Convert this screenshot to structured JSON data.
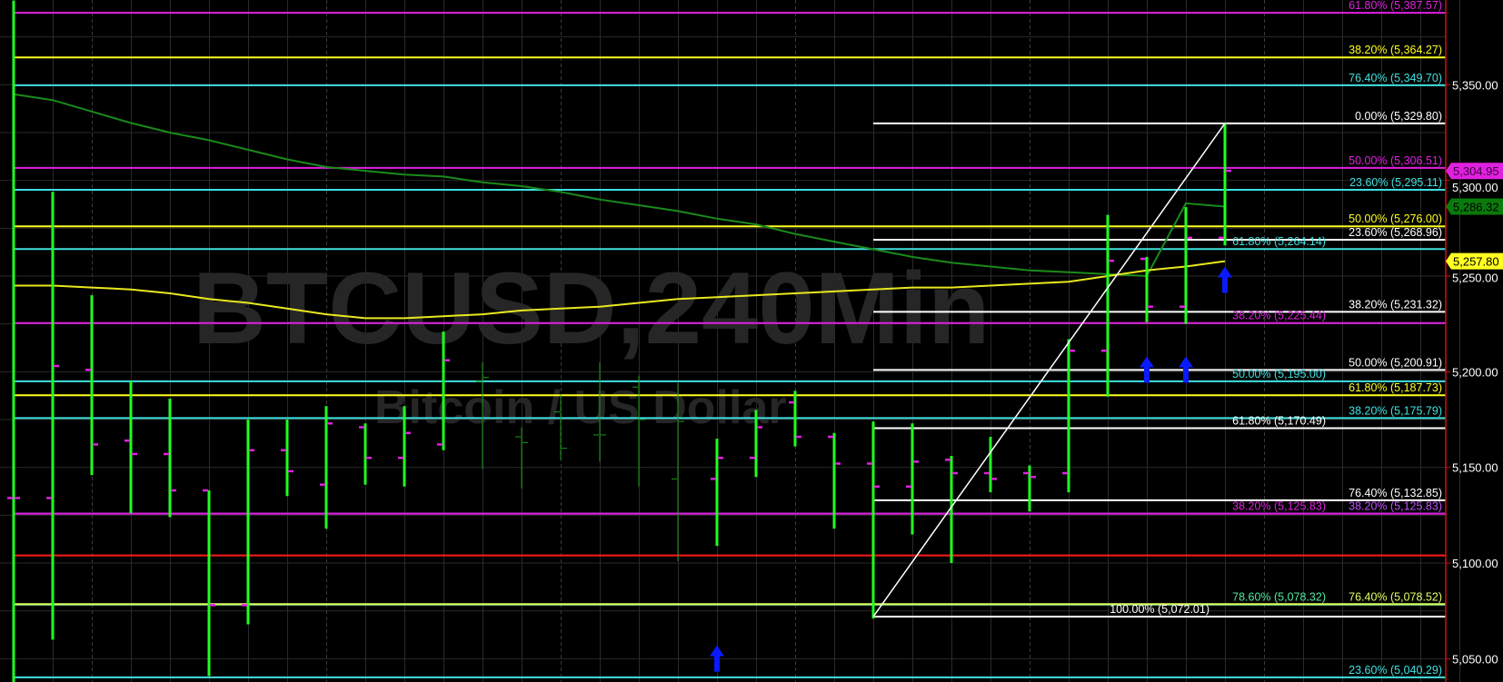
{
  "chart_data": {
    "type": "ohlc",
    "title": "BTCUSD,240Min",
    "subtitle": "Bitcoin / US Dollar",
    "ylim": [
      5010,
      5395
    ],
    "grid": true,
    "y_ticks": [
      "5,050.00",
      "5,100.00",
      "5,150.00",
      "5,200.00",
      "5,250.00",
      "5,300.00",
      "5,350.00"
    ],
    "y_tick_values": [
      5050,
      5100,
      5150,
      5200,
      5250,
      5300,
      5350
    ],
    "bars": [
      {
        "o": 5134,
        "h": 5394,
        "l": 5018,
        "c": 5134
      },
      {
        "o": 5134,
        "h": 5294,
        "l": 5060,
        "c": 5203
      },
      {
        "o": 5201,
        "h": 5240,
        "l": 5146,
        "c": 5162
      },
      {
        "o": 5164,
        "h": 5195,
        "l": 5126,
        "c": 5157
      },
      {
        "o": 5157,
        "h": 5186,
        "l": 5124,
        "c": 5138
      },
      {
        "o": 5138,
        "h": 5138,
        "l": 5041,
        "c": 5078
      },
      {
        "o": 5078,
        "h": 5175,
        "l": 5068,
        "c": 5159
      },
      {
        "o": 5159,
        "h": 5175,
        "l": 5135,
        "c": 5148
      },
      {
        "o": 5141,
        "h": 5182,
        "l": 5118,
        "c": 5173
      },
      {
        "o": 5171,
        "h": 5173,
        "l": 5141,
        "c": 5155
      },
      {
        "o": 5155,
        "h": 5182,
        "l": 5140,
        "c": 5168
      },
      {
        "o": 5162,
        "h": 5221,
        "l": 5159,
        "c": 5206
      },
      {
        "o": 5195,
        "h": 5205,
        "l": 5149,
        "c": 5197
      },
      {
        "o": 5166,
        "h": 5171,
        "l": 5139,
        "c": 5163
      },
      {
        "o": 5179,
        "h": 5188,
        "l": 5154,
        "c": 5160
      },
      {
        "o": 5167,
        "h": 5205,
        "l": 5153,
        "c": 5167
      },
      {
        "o": 5192,
        "h": 5198,
        "l": 5140,
        "c": 5175
      },
      {
        "o": 5144,
        "h": 5194,
        "l": 5101,
        "c": 5174
      },
      {
        "o": 5144,
        "h": 5165,
        "l": 5109,
        "c": 5155
      },
      {
        "o": 5155,
        "h": 5180,
        "l": 5145,
        "c": 5171
      },
      {
        "o": 5184,
        "h": 5190,
        "l": 5161,
        "c": 5166
      },
      {
        "o": 5166,
        "h": 5168,
        "l": 5118,
        "c": 5152
      },
      {
        "o": 5152,
        "h": 5174,
        "l": 5071,
        "c": 5140
      },
      {
        "o": 5140,
        "h": 5173,
        "l": 5115,
        "c": 5153
      },
      {
        "o": 5154,
        "h": 5156,
        "l": 5100,
        "c": 5147
      },
      {
        "o": 5147,
        "h": 5166,
        "l": 5137,
        "c": 5144
      },
      {
        "o": 5147,
        "h": 5151,
        "l": 5127,
        "c": 5145
      },
      {
        "o": 5147,
        "h": 5217,
        "l": 5137,
        "c": 5211
      },
      {
        "o": 5211,
        "h": 5282,
        "l": 5187,
        "c": 5258
      },
      {
        "o": 5259,
        "h": 5260,
        "l": 5226,
        "c": 5234
      },
      {
        "o": 5234,
        "h": 5286,
        "l": 5225,
        "c": 5270
      },
      {
        "o": 5270,
        "h": 5330,
        "l": 5266,
        "c": 5305
      }
    ],
    "series": [
      {
        "values": [
          5345,
          5342,
          5336,
          5330,
          5325,
          5321,
          5316,
          5311,
          5307,
          5305,
          5303,
          5302,
          5299,
          5297,
          5294,
          5290,
          5287,
          5284,
          5280,
          5277,
          5272,
          5268,
          5264,
          5260,
          5257,
          5255,
          5253,
          5252,
          5251,
          5250,
          5288,
          5286.32
        ]
      },
      {
        "values": [
          5245,
          5245,
          5244,
          5243,
          5241,
          5238,
          5236,
          5233,
          5230,
          5228,
          5228,
          5229,
          5230,
          5232,
          5233,
          5234,
          5236,
          5238,
          5239,
          5240,
          5241,
          5242,
          5243,
          5244,
          5244,
          5245,
          5246,
          5247,
          5250,
          5253,
          5255,
          5257.8
        ]
      }
    ],
    "fib_levels": [
      {
        "label": "61.80% (5,387.57)",
        "value": 5387.57,
        "color": "#e020e0",
        "from_bar": 0
      },
      {
        "label": "38.20% (5,364.27)",
        "value": 5364.27,
        "color": "#ffff20",
        "from_bar": 0
      },
      {
        "label": "76.40% (5,349.70)",
        "value": 5349.7,
        "color": "#40e0e0",
        "from_bar": 0
      },
      {
        "label": "0.00% (5,329.80)",
        "value": 5329.8,
        "color": "#ffffff",
        "from_bar": 22
      },
      {
        "label": "50.00% (5,306.51)",
        "value": 5306.51,
        "color": "#e020e0",
        "from_bar": 0
      },
      {
        "label": "23.60% (5,295.11)",
        "value": 5295.11,
        "color": "#40e0e0",
        "from_bar": 0
      },
      {
        "label": "50.00% (5,276.00)",
        "value": 5276.0,
        "color": "#ffff20",
        "from_bar": 0
      },
      {
        "label": "23.60% (5,268.96)",
        "value": 5268.96,
        "color": "#ffffff",
        "from_bar": 22
      },
      {
        "label": "61.80% (5,264.14)",
        "value": 5264.14,
        "color": "#40e0e0",
        "from_bar": 0
      },
      {
        "label": "38.20% (5,231.32)",
        "value": 5231.32,
        "color": "#ffffff",
        "from_bar": 22
      },
      {
        "label": "38.20% (5,225.44)",
        "value": 5225.44,
        "color": "#e020e0",
        "from_bar": 0
      },
      {
        "label": "50.00% (5,200.91)",
        "value": 5200.91,
        "color": "#ffffff",
        "from_bar": 22
      },
      {
        "label": "50.00% (5,195.00)",
        "value": 5195.0,
        "color": "#40e0e0",
        "from_bar": 0
      },
      {
        "label": "61.80% (5,187.73)",
        "value": 5187.73,
        "color": "#ffff20",
        "from_bar": 0
      },
      {
        "label": "38.20% (5,175.79)",
        "value": 5175.79,
        "color": "#40e0e0",
        "from_bar": 0
      },
      {
        "label": "61.80% (5,170.49)",
        "value": 5170.49,
        "color": "#ffffff",
        "from_bar": 22
      },
      {
        "label": "76.40% (5,132.85)",
        "value": 5132.85,
        "color": "#ffffff",
        "from_bar": 22
      },
      {
        "label": "38.20% (5,125.83)",
        "value": 5125.83,
        "color": "#c050ff",
        "from_bar": 0
      },
      {
        "label": "38.20% (5,125.83)",
        "value": 5125.83,
        "color": "#e020e0",
        "from_bar": 0
      },
      {
        "label": "",
        "value": 5104,
        "color": "#ff1a1a",
        "from_bar": 0
      },
      {
        "label": "78.60% (5,078.32)",
        "value": 5078.32,
        "color": "#50e8a0",
        "from_bar": 0
      },
      {
        "label": "76.40% (5,078.52)",
        "value": 5078.52,
        "color": "#e0ff60",
        "from_bar": 0
      },
      {
        "label": "100.00% (5,072.01)",
        "value": 5072.01,
        "color": "#ffffff",
        "from_bar": 22
      },
      {
        "label": "23.60% (5,040.29)",
        "value": 5040.29,
        "color": "#40e0e0",
        "from_bar": 0
      }
    ],
    "trendline": {
      "from": {
        "bar": 22,
        "value": 5072.01
      },
      "to": {
        "bar": 31,
        "value": 5329.8
      },
      "color": "#ffffff"
    },
    "signal_arrows": [
      {
        "bar": 18,
        "value": 5057,
        "direction": "up"
      },
      {
        "bar": 29,
        "value": 5208,
        "direction": "up"
      },
      {
        "bar": 30,
        "value": 5208,
        "direction": "up"
      },
      {
        "bar": 31,
        "value": 5255,
        "direction": "up"
      }
    ],
    "price_tags": [
      {
        "label": "5,304.95",
        "value": 5304.95,
        "bg": "#e020e0",
        "fg": "#400040"
      },
      {
        "label": "5,286.32",
        "value": 5286.32,
        "bg": "#0a7a0a",
        "fg": "#000000"
      },
      {
        "label": "5,257.80",
        "value": 5257.8,
        "bg": "#ffff20",
        "fg": "#000000"
      }
    ],
    "colors": {
      "bar": "#20ff20",
      "bar_thin": "#1a9a1a",
      "tick": "#e020e0",
      "ma_slow": "#1a8a1a",
      "ma_fast": "#e8e820",
      "arrow": "#0a1aff",
      "axis": "#d01010",
      "grid": "#2a2a2a",
      "background": "#000000"
    }
  }
}
